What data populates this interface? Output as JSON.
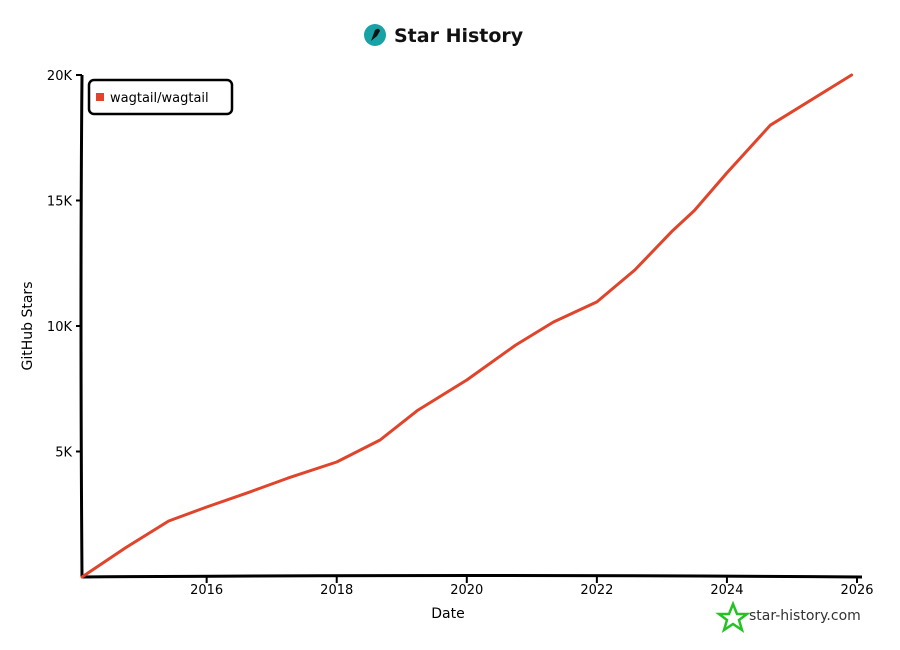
{
  "chart_data": {
    "type": "line",
    "title": "Star History",
    "xlabel": "Date",
    "ylabel": "GitHub Stars",
    "x_ticks": [
      "2016",
      "2018",
      "2020",
      "2022",
      "2024",
      "2026"
    ],
    "y_ticks": [
      "5K",
      "10K",
      "15K",
      "20K"
    ],
    "xlim": [
      "2014-02",
      "2026-01"
    ],
    "ylim": [
      0,
      20000
    ],
    "grid": false,
    "legend_position": "top-left",
    "series": [
      {
        "name": "wagtail/wagtail",
        "color": "#e0442b",
        "points": [
          [
            "2014-02",
            0
          ],
          [
            "2014-10",
            1160
          ],
          [
            "2015-06",
            2230
          ],
          [
            "2016-01",
            2790
          ],
          [
            "2016-09",
            3390
          ],
          [
            "2017-04",
            3940
          ],
          [
            "2018-01",
            4580
          ],
          [
            "2018-09",
            5460
          ],
          [
            "2019-04",
            6650
          ],
          [
            "2020-01",
            7850
          ],
          [
            "2020-10",
            9240
          ],
          [
            "2021-05",
            10160
          ],
          [
            "2022-01",
            10960
          ],
          [
            "2022-08",
            12230
          ],
          [
            "2023-03",
            13800
          ],
          [
            "2023-07",
            14600
          ],
          [
            "2024-01",
            16100
          ],
          [
            "2024-09",
            18000
          ],
          [
            "2025-12",
            20000
          ]
        ]
      }
    ],
    "watermark": "star-history.com"
  },
  "colors": {
    "logo_bg": "#17a2a6",
    "watermark_star": "#22c322",
    "line": "#e0442b"
  }
}
